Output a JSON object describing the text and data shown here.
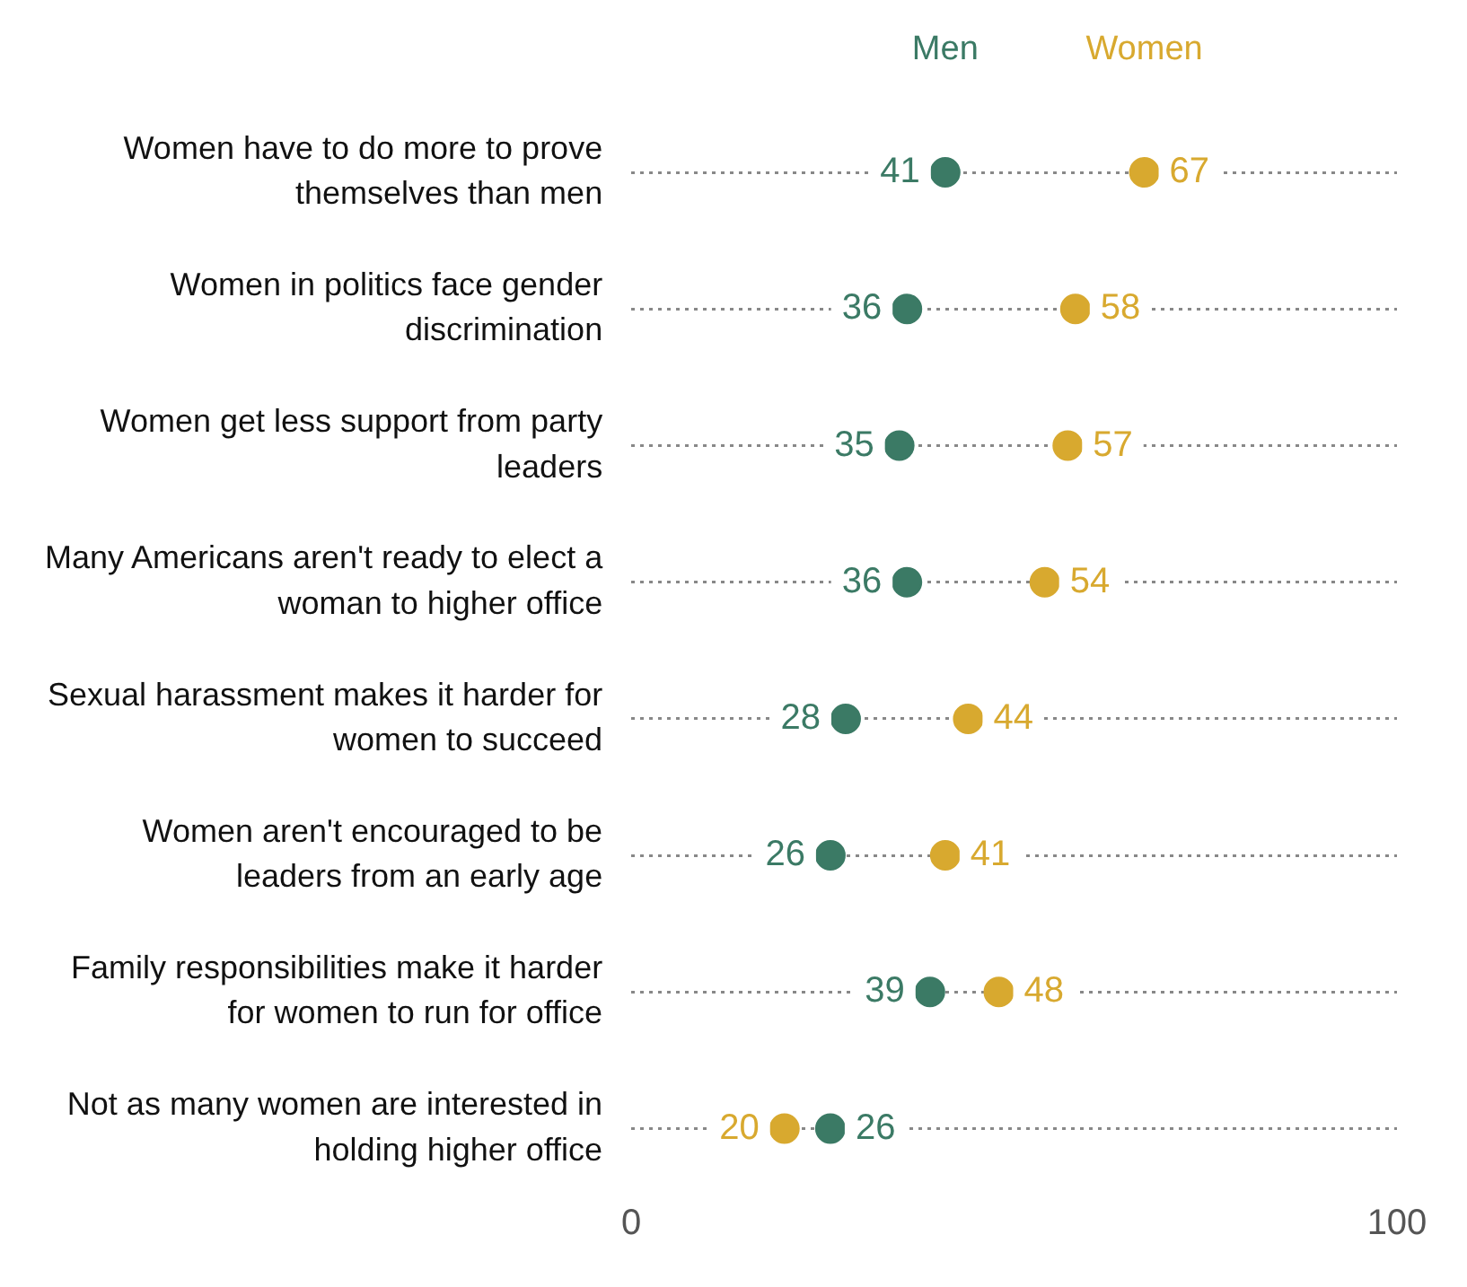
{
  "chart_data": {
    "type": "scatter",
    "orientation": "horizontal",
    "categories": [
      "Women have to do more to prove themselves than men",
      "Women in politics face gender discrimination",
      "Women get less support from party leaders",
      "Many Americans aren't ready to elect a woman to higher office",
      "Sexual harassment makes it harder for women to succeed",
      "Women aren't encouraged to be leaders from an early age",
      "Family responsibilities make it harder for women to run for office",
      "Not as many women are interested in holding higher office"
    ],
    "series": [
      {
        "name": "Men",
        "color": "#3b7a65",
        "values": [
          41,
          36,
          35,
          36,
          28,
          26,
          39,
          26
        ]
      },
      {
        "name": "Women",
        "color": "#d8a92f",
        "values": [
          67,
          58,
          57,
          54,
          44,
          41,
          48,
          20
        ]
      }
    ],
    "xlim": [
      0,
      100
    ],
    "xticks": [
      0,
      100
    ],
    "grid": "y",
    "legend": "top",
    "marker": "circle",
    "data_labels": true
  }
}
